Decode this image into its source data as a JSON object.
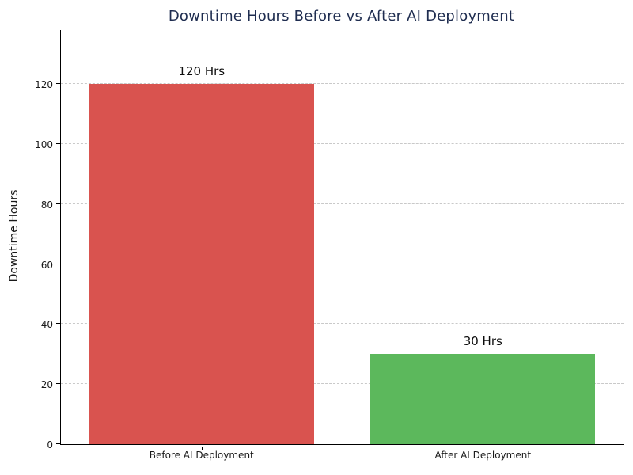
{
  "chart": {
    "title": "Downtime Hours Before vs After AI Deployment",
    "ylabel": "Downtime Hours",
    "title_color": "#1f2d50"
  },
  "chart_data": {
    "type": "bar",
    "title": "Downtime Hours Before vs After AI Deployment",
    "categories": [
      "Before AI Deployment",
      "After AI Deployment"
    ],
    "values": [
      120,
      30
    ],
    "annotations": [
      "120 Hrs",
      "30 Hrs"
    ],
    "bar_colors": [
      "#d9534f",
      "#5cb85c"
    ],
    "xlabel": "",
    "ylabel": "Downtime Hours",
    "ylim": [
      0,
      138
    ],
    "yticks": [
      0,
      20,
      40,
      60,
      80,
      100,
      120
    ],
    "bar_width_fraction": 0.8,
    "grid": "horizontal-dashed",
    "gridline_color": "#c9c9c9",
    "legend": "none"
  }
}
